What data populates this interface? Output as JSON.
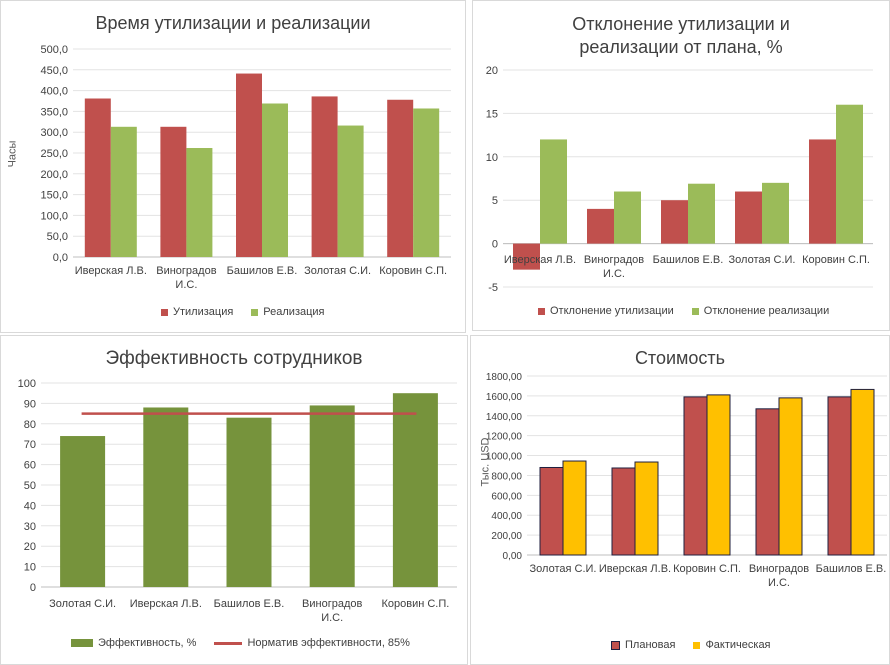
{
  "charts": [
    {
      "id": "time",
      "title": "Время утилизации  и реализации",
      "ylabel": "Часы",
      "type": "bar",
      "categories": [
        "Иверская Л.В.",
        "Виноградов И.С.",
        "Башилов Е.В.",
        "Золотая С.И.",
        "Коровин С.П."
      ],
      "category_lines": [
        [
          "Иверская Л.В."
        ],
        [
          "Виноградов",
          "И.С."
        ],
        [
          "Башилов Е.В."
        ],
        [
          "Золотая С.И."
        ],
        [
          "Коровин С.П."
        ]
      ],
      "series": [
        {
          "name": "Утилизация",
          "color": "#c0504d",
          "values": [
            381,
            313,
            441,
            386,
            378
          ]
        },
        {
          "name": "Реализация",
          "color": "#9bbb59",
          "values": [
            313,
            262,
            369,
            316,
            357
          ]
        }
      ],
      "ylim": [
        0,
        500
      ],
      "yticks": [
        "0,0",
        "50,0",
        "100,0",
        "150,0",
        "200,0",
        "250,0",
        "300,0",
        "350,0",
        "400,0",
        "450,0",
        "500,0"
      ]
    },
    {
      "id": "deviation",
      "title_lines": [
        "Отклонение утилизации и",
        "реализации от плана,  %"
      ],
      "type": "bar",
      "categories": [
        "Иверская Л.В.",
        "Виноградов И.С.",
        "Башилов Е.В.",
        "Золотая С.И.",
        "Коровин С.П."
      ],
      "category_lines": [
        [
          "Иверская Л.В."
        ],
        [
          "Виноградов",
          "И.С."
        ],
        [
          "Башилов Е.В."
        ],
        [
          "Золотая С.И."
        ],
        [
          "Коровин С.П."
        ]
      ],
      "series": [
        {
          "name": "Отклонение утилизации",
          "color": "#c0504d",
          "values": [
            -3,
            4,
            5,
            6,
            12
          ]
        },
        {
          "name": "Отклонение реализации",
          "color": "#9bbb59",
          "values": [
            12,
            6,
            6.9,
            7,
            16
          ]
        }
      ],
      "ylim": [
        -5,
        20
      ],
      "yticks": [
        "-5",
        "0",
        "5",
        "10",
        "15",
        "20"
      ]
    },
    {
      "id": "efficiency",
      "title": "Эффективность сотрудников",
      "type": "bar",
      "categories": [
        "Золотая С.И.",
        "Иверская Л.В.",
        "Башилов Е.В.",
        "Виноградов И.С.",
        "Коровин С.П."
      ],
      "category_lines": [
        [
          "Золотая С.И."
        ],
        [
          "Иверская Л.В."
        ],
        [
          "Башилов Е.В."
        ],
        [
          "Виноградов",
          "И.С."
        ],
        [
          "Коровин С.П."
        ]
      ],
      "series": [
        {
          "name": "Эффективность, %",
          "color": "#76933c",
          "values": [
            74,
            88,
            83,
            89,
            95
          ]
        }
      ],
      "line": {
        "name": "Норматив эффективности, 85%",
        "color": "#c0504d",
        "value": 85
      },
      "ylim": [
        0,
        100
      ],
      "yticks": [
        "0",
        "10",
        "20",
        "30",
        "40",
        "50",
        "60",
        "70",
        "80",
        "90",
        "100"
      ]
    },
    {
      "id": "cost",
      "title": "Стоимость",
      "ylabel": "Тыс. USD",
      "type": "bar",
      "categories": [
        "Золотая С.И.",
        "Иверская Л.В.",
        "Коровин С.П.",
        "Виноградов И.С.",
        "Башилов Е.В."
      ],
      "category_lines": [
        [
          "Золотая С.И."
        ],
        [
          "Иверская Л.В."
        ],
        [
          "Коровин С.П."
        ],
        [
          "Виноградов",
          "И.С."
        ],
        [
          "Башилов Е.В."
        ]
      ],
      "series": [
        {
          "name": "Плановая",
          "color": "#c0504d",
          "values": [
            880,
            875,
            1590,
            1470,
            1590
          ]
        },
        {
          "name": "Фактическая",
          "color": "#ffc000",
          "values": [
            945,
            935,
            1610,
            1580,
            1665
          ]
        }
      ],
      "ylim": [
        0,
        1800
      ],
      "yticks": [
        "0,00",
        "200,00",
        "400,00",
        "600,00",
        "800,00",
        "1000,00",
        "1200,00",
        "1400,00",
        "1600,00",
        "1800,00"
      ]
    }
  ]
}
